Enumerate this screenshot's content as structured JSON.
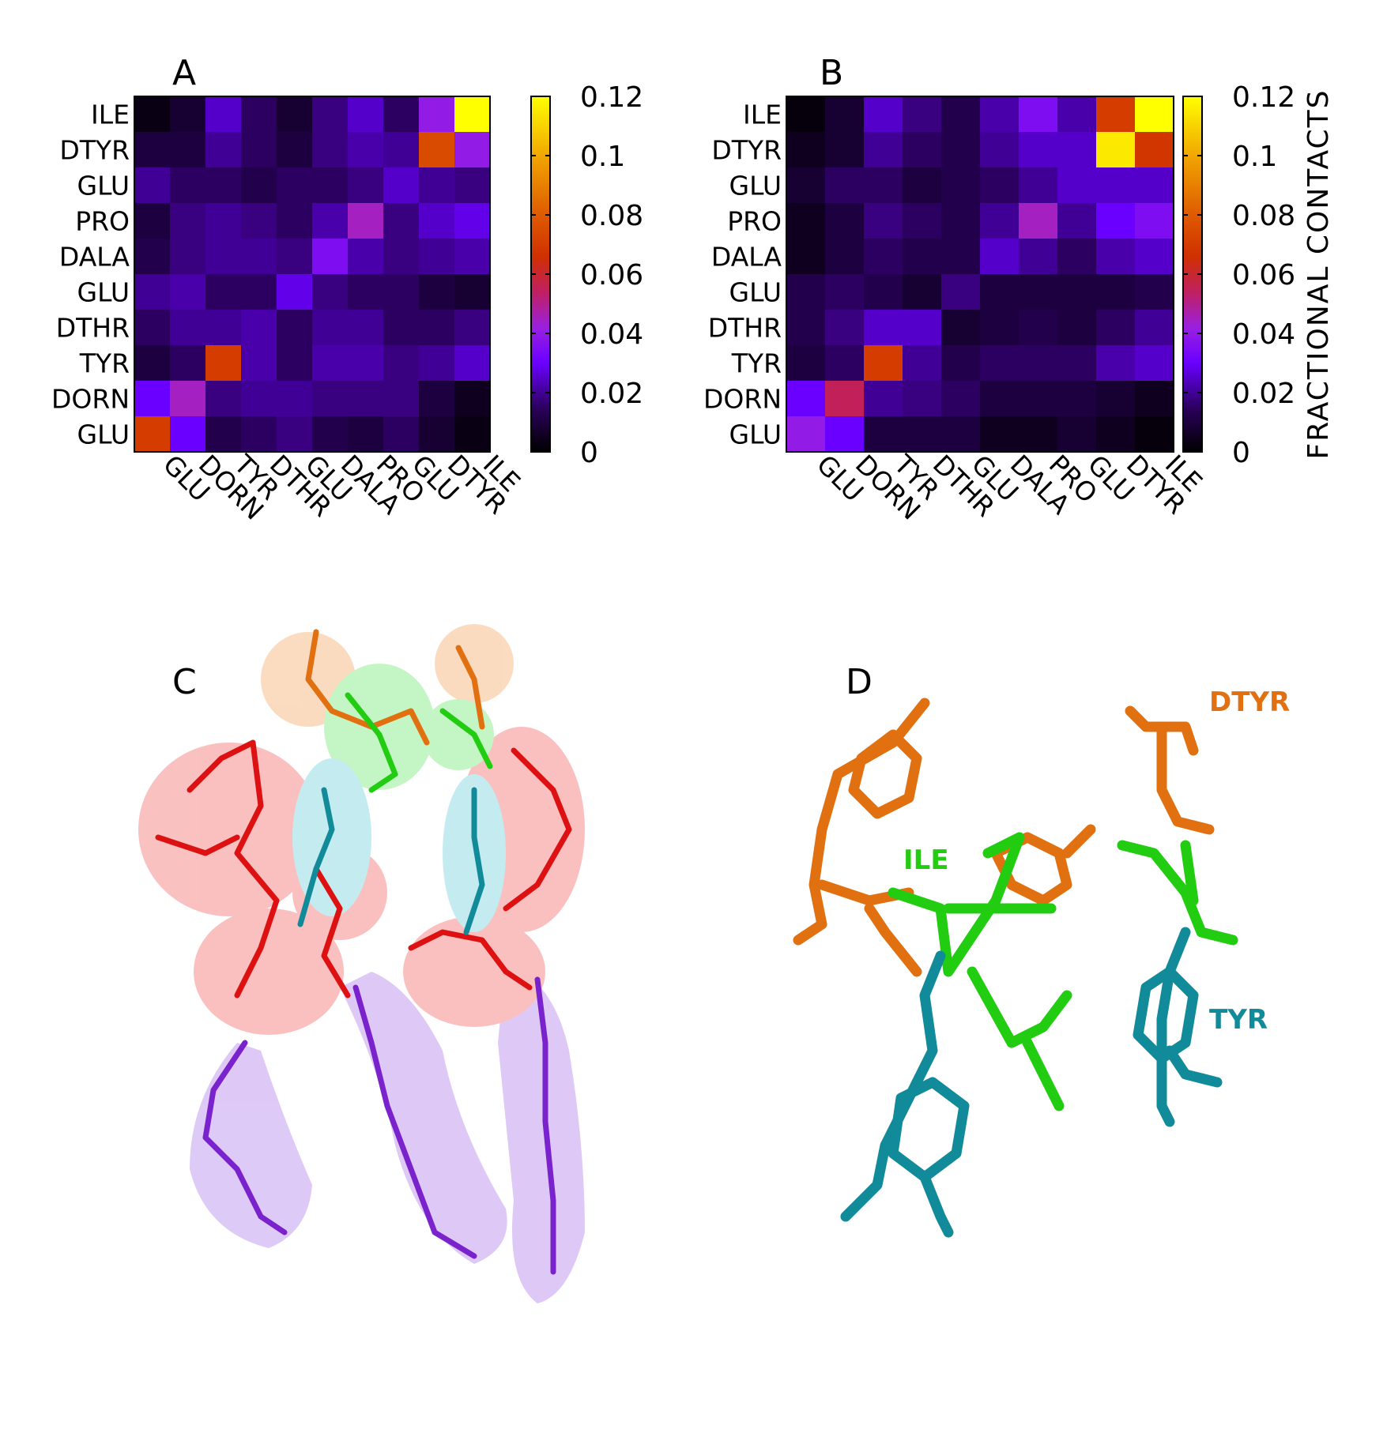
{
  "colors": {
    "colormap": [
      "#000000",
      "#2a005a",
      "#5a00c8",
      "#8a16ff",
      "#a23ab8",
      "#c41e30",
      "#d84400",
      "#e87800",
      "#f5b800",
      "#ffff00"
    ],
    "ile": "#22cc11",
    "dtyr": "#e07010",
    "tyr": "#118a99",
    "peptide_red": "#dd1111",
    "lipid_purple": "#7a22cc"
  },
  "panels": {
    "A": "A",
    "B": "B",
    "C": "C",
    "D": "D"
  },
  "chart_data": [
    {
      "type": "heatmap",
      "panel": "A",
      "title": "",
      "y_categories": [
        "ILE",
        "DTYR",
        "GLU",
        "PRO",
        "DALA",
        "GLU",
        "DTHR",
        "TYR",
        "DORN",
        "GLU"
      ],
      "x_categories": [
        "GLU",
        "DORN",
        "TYR",
        "DTHR",
        "GLU",
        "DALA",
        "PRO",
        "GLU",
        "DTYR",
        "ILE"
      ],
      "values": [
        [
          0.003,
          0.008,
          0.025,
          0.015,
          0.008,
          0.018,
          0.025,
          0.015,
          0.04,
          0.12
        ],
        [
          0.01,
          0.01,
          0.02,
          0.015,
          0.01,
          0.018,
          0.022,
          0.02,
          0.075,
          0.04
        ],
        [
          0.02,
          0.015,
          0.015,
          0.012,
          0.015,
          0.015,
          0.018,
          0.025,
          0.02,
          0.018
        ],
        [
          0.01,
          0.018,
          0.02,
          0.018,
          0.015,
          0.022,
          0.045,
          0.018,
          0.025,
          0.028
        ],
        [
          0.012,
          0.018,
          0.02,
          0.02,
          0.018,
          0.035,
          0.022,
          0.018,
          0.02,
          0.022
        ],
        [
          0.02,
          0.022,
          0.015,
          0.015,
          0.028,
          0.018,
          0.015,
          0.015,
          0.01,
          0.008
        ],
        [
          0.015,
          0.02,
          0.02,
          0.022,
          0.015,
          0.02,
          0.02,
          0.015,
          0.015,
          0.018
        ],
        [
          0.01,
          0.015,
          0.07,
          0.022,
          0.015,
          0.022,
          0.022,
          0.018,
          0.02,
          0.025
        ],
        [
          0.03,
          0.045,
          0.018,
          0.02,
          0.02,
          0.018,
          0.018,
          0.018,
          0.01,
          0.005
        ],
        [
          0.07,
          0.03,
          0.012,
          0.015,
          0.018,
          0.012,
          0.01,
          0.015,
          0.008,
          0.003
        ]
      ],
      "colorbar": {
        "min": 0,
        "max": 0.12,
        "ticks": [
          "0",
          "0.02",
          "0.04",
          "0.06",
          "0.08",
          "0.1",
          "0.12"
        ],
        "label": ""
      }
    },
    {
      "type": "heatmap",
      "panel": "B",
      "title": "",
      "y_categories": [
        "ILE",
        "DTYR",
        "GLU",
        "PRO",
        "DALA",
        "GLU",
        "DTHR",
        "TYR",
        "DORN",
        "GLU"
      ],
      "x_categories": [
        "GLU",
        "DORN",
        "TYR",
        "DTHR",
        "GLU",
        "DALA",
        "PRO",
        "GLU",
        "DTYR",
        "ILE"
      ],
      "values": [
        [
          0.002,
          0.008,
          0.025,
          0.018,
          0.012,
          0.022,
          0.035,
          0.022,
          0.07,
          0.12
        ],
        [
          0.005,
          0.008,
          0.02,
          0.015,
          0.012,
          0.02,
          0.025,
          0.025,
          0.115,
          0.068
        ],
        [
          0.008,
          0.015,
          0.015,
          0.01,
          0.012,
          0.015,
          0.02,
          0.025,
          0.025,
          0.025
        ],
        [
          0.005,
          0.01,
          0.018,
          0.015,
          0.012,
          0.02,
          0.045,
          0.02,
          0.03,
          0.035
        ],
        [
          0.005,
          0.01,
          0.015,
          0.012,
          0.012,
          0.025,
          0.02,
          0.015,
          0.022,
          0.025
        ],
        [
          0.012,
          0.015,
          0.012,
          0.008,
          0.018,
          0.01,
          0.01,
          0.01,
          0.01,
          0.012
        ],
        [
          0.012,
          0.018,
          0.025,
          0.025,
          0.008,
          0.01,
          0.012,
          0.01,
          0.015,
          0.02
        ],
        [
          0.01,
          0.015,
          0.07,
          0.02,
          0.012,
          0.015,
          0.015,
          0.015,
          0.022,
          0.025
        ],
        [
          0.03,
          0.055,
          0.02,
          0.018,
          0.015,
          0.01,
          0.01,
          0.01,
          0.008,
          0.005
        ],
        [
          0.04,
          0.03,
          0.01,
          0.01,
          0.01,
          0.005,
          0.005,
          0.008,
          0.005,
          0.002
        ]
      ],
      "colorbar": {
        "min": 0,
        "max": 0.12,
        "ticks": [
          "0",
          "0.02",
          "0.04",
          "0.06",
          "0.08",
          "0.1",
          "0.12"
        ],
        "label": "FRACTIONAL CONTACTS"
      }
    }
  ],
  "molecule_labels": {
    "dtyr": "DTYR",
    "ile": "ILE",
    "tyr": "TYR"
  }
}
